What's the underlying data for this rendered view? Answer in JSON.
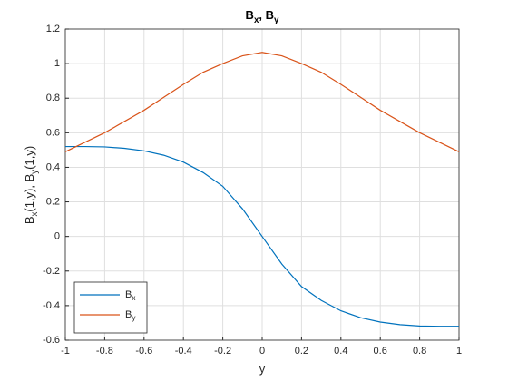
{
  "chart_data": {
    "type": "line",
    "title": "Bx, By",
    "xlabel": "y",
    "ylabel": "Bx(1,y), By(1,y)",
    "x": [
      -1,
      -0.9,
      -0.8,
      -0.7,
      -0.6,
      -0.5,
      -0.4,
      -0.3,
      -0.2,
      -0.1,
      0,
      0.1,
      0.2,
      0.3,
      0.4,
      0.5,
      0.6,
      0.7,
      0.8,
      0.9,
      1
    ],
    "series": [
      {
        "name": "Bx",
        "color": "#0072BD",
        "values": [
          0.52,
          0.52,
          0.518,
          0.51,
          0.495,
          0.47,
          0.43,
          0.37,
          0.29,
          0.16,
          0,
          -0.16,
          -0.29,
          -0.37,
          -0.43,
          -0.47,
          -0.495,
          -0.51,
          -0.518,
          -0.52,
          -0.52
        ]
      },
      {
        "name": "By",
        "color": "#D95319",
        "values": [
          0.49,
          0.545,
          0.6,
          0.665,
          0.73,
          0.805,
          0.88,
          0.95,
          1.0,
          1.045,
          1.065,
          1.045,
          1.0,
          0.95,
          0.88,
          0.805,
          0.73,
          0.665,
          0.6,
          0.545,
          0.49
        ]
      }
    ],
    "xlim": [
      -1,
      1
    ],
    "xticks": [
      -1,
      -0.8,
      -0.6,
      -0.4,
      -0.2,
      0,
      0.2,
      0.4,
      0.6,
      0.8,
      1
    ],
    "ylim": [
      -0.6,
      1.2
    ],
    "yticks": [
      -0.6,
      -0.4,
      -0.2,
      0,
      0.2,
      0.4,
      0.6,
      0.8,
      1,
      1.2
    ],
    "grid": true,
    "legend": "southwest"
  }
}
